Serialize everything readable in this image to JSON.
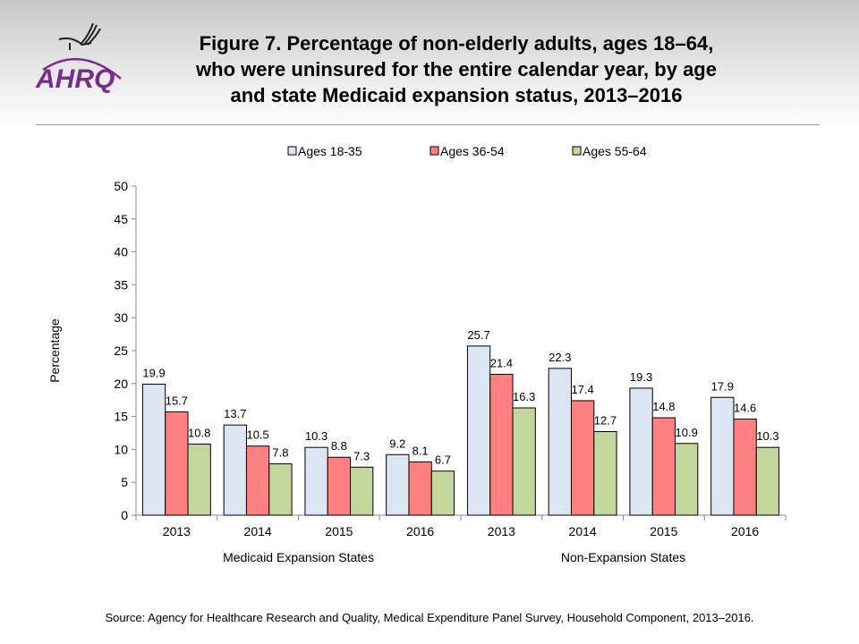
{
  "header": {
    "title": "Figure 7. Percentage of non-elderly adults, ages 18–64, who were uninsured for the entire calendar year, by age and state Medicaid expansion status, 2013–2016",
    "logo_text": "AHRQ"
  },
  "source": "Source: Agency for Healthcare Research and Quality, Medical Expenditure Panel Survey, Household Component, 2013–2016.",
  "chart_data": {
    "type": "bar",
    "title": "",
    "ylabel": "Percentage",
    "xlabel": "",
    "ylim": [
      0,
      50
    ],
    "yticks": [
      0,
      5,
      10,
      15,
      20,
      25,
      30,
      35,
      40,
      45,
      50
    ],
    "grid": false,
    "legend_position": "top",
    "groups": [
      "Medicaid Expansion States",
      "Non-Expansion States"
    ],
    "categories": [
      "2013",
      "2014",
      "2015",
      "2016",
      "2013",
      "2014",
      "2015",
      "2016"
    ],
    "series": [
      {
        "name": "Ages 18-35",
        "color": "#dce6f2",
        "values": [
          19.9,
          13.7,
          10.3,
          9.2,
          25.7,
          22.3,
          19.3,
          17.9
        ]
      },
      {
        "name": "Ages 36-54",
        "color": "#ff8080",
        "values": [
          15.7,
          10.5,
          8.8,
          8.1,
          21.4,
          17.4,
          14.8,
          14.6
        ]
      },
      {
        "name": "Ages 55-64",
        "color": "#c3d69b",
        "values": [
          10.8,
          7.8,
          7.3,
          6.7,
          16.3,
          12.7,
          10.9,
          10.3
        ]
      }
    ]
  }
}
